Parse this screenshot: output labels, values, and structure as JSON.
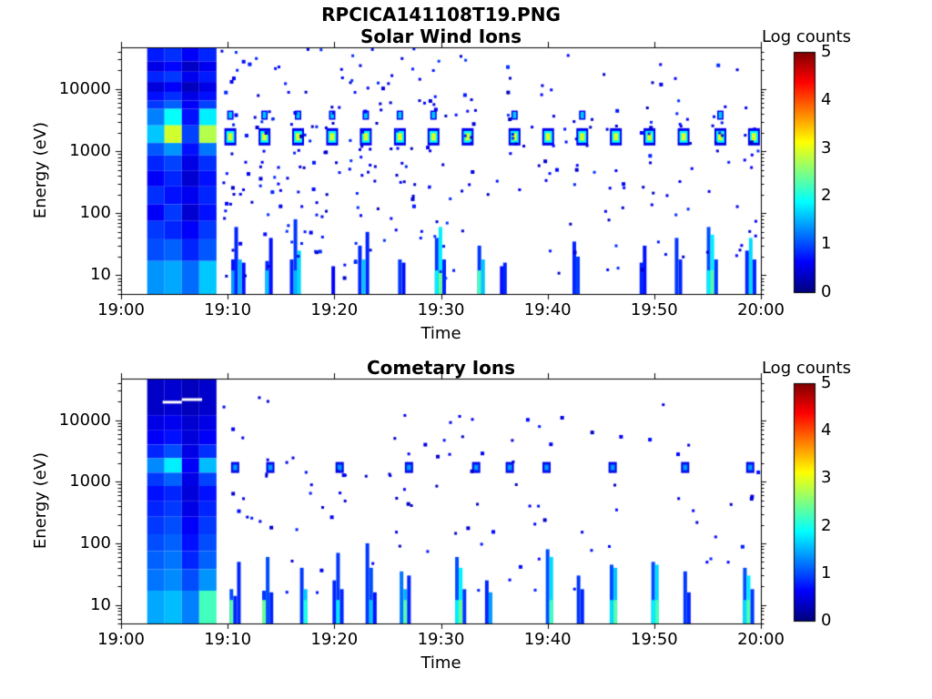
{
  "chart_data": {
    "type": "heatmap",
    "main_title": "RPCICA141108T19.PNG",
    "colormap": "jet",
    "x_axis": {
      "label": "Time",
      "tick_labels": [
        "19:00",
        "19:10",
        "19:20",
        "19:30",
        "19:40",
        "19:50",
        "20:00"
      ],
      "tick_minutes": [
        0,
        10,
        20,
        30,
        40,
        50,
        60
      ],
      "range_minutes": [
        0,
        60
      ]
    },
    "y_axis": {
      "label": "Energy (eV)",
      "scale": "log",
      "tick_labels": [
        "10",
        "100",
        "1000",
        "10000"
      ],
      "tick_values": [
        10,
        100,
        1000,
        10000
      ],
      "range_ev": [
        5,
        47000
      ]
    },
    "colorbar": {
      "label": "Log counts",
      "tick_labels": [
        "0",
        "1",
        "2",
        "3",
        "4",
        "5"
      ],
      "range": [
        0,
        5
      ]
    },
    "panels": [
      {
        "title": "Solar Wind Ions",
        "dense_block": {
          "t0": 2.45,
          "t1": 8.95,
          "n_columns": 4,
          "bands": [
            {
              "e": [
                47000,
                28000
              ],
              "v": [
                0.75,
                0.85,
                0.6,
                0.8
              ]
            },
            {
              "e": [
                28000,
                19000
              ],
              "v": [
                0.5,
                0.65,
                0.35,
                0.55
              ]
            },
            {
              "e": [
                19000,
                13000
              ],
              "v": [
                0.8,
                0.9,
                0.55,
                0.75
              ]
            },
            {
              "e": [
                13000,
                9000
              ],
              "v": [
                0.45,
                0.6,
                0.3,
                0.5
              ]
            },
            {
              "e": [
                9000,
                6500
              ],
              "v": [
                0.7,
                0.85,
                0.5,
                0.7
              ]
            },
            {
              "e": [
                6500,
                4800
              ],
              "v": [
                0.9,
                1.1,
                0.6,
                0.95
              ]
            },
            {
              "e": [
                4800,
                2600
              ],
              "v": [
                1.25,
                1.9,
                0.7,
                1.8
              ]
            },
            {
              "e": [
                2600,
                1350
              ],
              "v": [
                1.6,
                2.9,
                0.95,
                2.75
              ]
            },
            {
              "e": [
                1350,
                850
              ],
              "v": [
                1.05,
                1.35,
                0.7,
                1.2
              ]
            },
            {
              "e": [
                850,
                480
              ],
              "v": [
                0.8,
                0.95,
                0.5,
                0.85
              ]
            },
            {
              "e": [
                480,
                270
              ],
              "v": [
                0.6,
                0.8,
                0.4,
                0.7
              ]
            },
            {
              "e": [
                270,
                140
              ],
              "v": [
                0.85,
                0.7,
                0.55,
                0.8
              ]
            },
            {
              "e": [
                140,
                75
              ],
              "v": [
                0.6,
                0.9,
                0.4,
                0.7
              ]
            },
            {
              "e": [
                75,
                38
              ],
              "v": [
                0.9,
                0.8,
                0.6,
                0.9
              ]
            },
            {
              "e": [
                38,
                17
              ],
              "v": [
                1.0,
                1.1,
                0.8,
                1.05
              ]
            },
            {
              "e": [
                17,
                5
              ],
              "v": [
                1.35,
                1.45,
                1.15,
                1.6
              ]
            }
          ]
        },
        "beam": {
          "energy_ev": 1700,
          "times_min": [
            10.25,
            13.45,
            16.6,
            19.8,
            22.95,
            26.15,
            29.3,
            32.5,
            36.9,
            40.05,
            43.25,
            46.4,
            49.55,
            52.75,
            56.2,
            59.35
          ],
          "core_v": 2.95,
          "mid_v": 1.85,
          "edge_v": 0.55
        },
        "upper_spots": {
          "energy_ev": 3800,
          "times_min": [
            10.25,
            13.45,
            16.6,
            19.8,
            22.95,
            26.15,
            29.3,
            36.9,
            43.25,
            56.2
          ],
          "v": 1.6,
          "edge_v": 0.6
        },
        "streaks": [
          [
            10.5,
            18,
            0.7,
            1.4
          ],
          [
            10.8,
            60,
            0.8,
            0
          ],
          [
            11.15,
            18,
            1.5,
            0
          ],
          [
            11.5,
            16,
            0.7,
            0
          ],
          [
            13.7,
            17,
            0.8,
            1.6
          ],
          [
            14.05,
            40,
            0.7,
            0
          ],
          [
            16.0,
            18,
            0.8,
            0
          ],
          [
            16.35,
            80,
            0.9,
            1.5
          ],
          [
            16.7,
            25,
            1.7,
            0
          ],
          [
            19.9,
            14,
            0.6,
            0
          ],
          [
            22.4,
            30,
            0.8,
            0
          ],
          [
            22.75,
            18,
            1.6,
            0
          ],
          [
            23.1,
            50,
            0.8,
            0
          ],
          [
            26.15,
            18,
            0.9,
            0
          ],
          [
            26.5,
            16,
            0.7,
            0
          ],
          [
            29.6,
            40,
            0.9,
            1.8
          ],
          [
            29.95,
            60,
            1.8,
            2.4
          ],
          [
            30.3,
            18,
            0.8,
            0
          ],
          [
            33.6,
            30,
            0.9,
            2.2
          ],
          [
            33.95,
            18,
            1.6,
            0
          ],
          [
            35.7,
            14,
            0.7,
            0
          ],
          [
            36.0,
            16,
            0.8,
            0
          ],
          [
            42.5,
            35,
            0.8,
            0
          ],
          [
            42.85,
            20,
            0.9,
            0
          ],
          [
            48.8,
            16,
            0.8,
            0
          ],
          [
            49.1,
            30,
            0.7,
            0
          ],
          [
            52.1,
            40,
            0.9,
            0
          ],
          [
            52.45,
            18,
            0.8,
            0
          ],
          [
            55.1,
            60,
            1.0,
            1.8
          ],
          [
            55.45,
            45,
            1.8,
            2.3
          ],
          [
            55.8,
            18,
            0.9,
            0
          ],
          [
            58.7,
            25,
            0.8,
            0
          ],
          [
            59.05,
            40,
            1.7,
            0
          ],
          [
            59.4,
            18,
            0.8,
            0
          ]
        ],
        "speckles": {
          "seed": 7,
          "regions": [
            {
              "t": [
                9.3,
                31
              ],
              "log_e": [
                0.95,
                4.65
              ],
              "count": 135,
              "v": [
                0.3,
                0.9
              ]
            },
            {
              "t": [
                31,
                60
              ],
              "log_e": [
                0.95,
                4.65
              ],
              "count": 65,
              "v": [
                0.3,
                0.9
              ]
            }
          ],
          "beam_halo": {
            "per_beam": 7,
            "t_spread": 1.8,
            "log_e": [
              2.3,
              3.95
            ],
            "v": [
              0.3,
              0.85
            ]
          }
        }
      },
      {
        "title": "Cometary Ions",
        "dense_block": {
          "t0": 2.45,
          "t1": 8.95,
          "n_columns": 4,
          "bands": [
            {
              "e": [
                47000,
                12000
              ],
              "v": [
                0.35,
                0.4,
                0.3,
                0.38
              ]
            },
            {
              "e": [
                12000,
                6800
              ],
              "v": [
                0.5,
                0.55,
                0.4,
                0.5
              ]
            },
            {
              "e": [
                6800,
                4000
              ],
              "v": [
                0.6,
                0.7,
                0.45,
                0.6
              ]
            },
            {
              "e": [
                4000,
                2400
              ],
              "v": [
                0.8,
                1.0,
                0.5,
                0.85
              ]
            },
            {
              "e": [
                2400,
                1400
              ],
              "v": [
                1.3,
                1.8,
                0.6,
                1.55
              ]
            },
            {
              "e": [
                1400,
                850
              ],
              "v": [
                0.9,
                1.1,
                0.5,
                0.95
              ]
            },
            {
              "e": [
                850,
                480
              ],
              "v": [
                0.7,
                0.8,
                0.45,
                0.7
              ]
            },
            {
              "e": [
                480,
                270
              ],
              "v": [
                0.8,
                0.9,
                0.5,
                0.8
              ]
            },
            {
              "e": [
                270,
                140
              ],
              "v": [
                0.9,
                1.0,
                0.6,
                0.9
              ]
            },
            {
              "e": [
                140,
                75
              ],
              "v": [
                1.0,
                1.1,
                0.7,
                1.0
              ]
            },
            {
              "e": [
                75,
                38
              ],
              "v": [
                1.1,
                1.2,
                0.8,
                1.1
              ]
            },
            {
              "e": [
                38,
                17
              ],
              "v": [
                1.2,
                1.3,
                1.0,
                1.35
              ]
            },
            {
              "e": [
                17,
                5
              ],
              "v": [
                1.45,
                1.55,
                1.25,
                2.2
              ]
            }
          ]
        },
        "white_dashes": [
          {
            "t": [
              3.9,
              5.7
            ],
            "e": 19500
          },
          {
            "t": [
              5.7,
              7.6
            ],
            "e": 21500
          }
        ],
        "beam": {
          "energy_ev": 1700,
          "times_min": [
            10.7,
            14.0,
            20.5,
            27.0,
            33.3,
            36.45,
            39.9,
            46.1,
            52.9,
            59.0
          ],
          "core_v": 1.4,
          "mid_v": 0.95,
          "edge_v": 0.5
        },
        "streaks": [
          [
            10.35,
            18,
            1.0,
            2.3
          ],
          [
            10.7,
            14,
            0.8,
            0
          ],
          [
            11.05,
            50,
            0.8,
            0
          ],
          [
            13.4,
            17,
            0.9,
            2.4
          ],
          [
            13.75,
            60,
            1.0,
            0
          ],
          [
            14.1,
            16,
            0.8,
            0
          ],
          [
            16.95,
            40,
            0.9,
            0
          ],
          [
            17.3,
            18,
            1.6,
            2.0
          ],
          [
            20.0,
            25,
            0.8,
            0
          ],
          [
            20.35,
            70,
            0.9,
            1.8
          ],
          [
            20.7,
            18,
            0.8,
            0
          ],
          [
            23.1,
            100,
            0.9,
            0
          ],
          [
            23.45,
            40,
            1.0,
            1.6
          ],
          [
            23.8,
            16,
            0.7,
            0
          ],
          [
            26.3,
            35,
            1.2,
            0
          ],
          [
            26.65,
            18,
            1.5,
            2.3
          ],
          [
            27.0,
            30,
            0.8,
            0
          ],
          [
            31.5,
            60,
            1.0,
            1.8
          ],
          [
            31.85,
            40,
            1.8,
            2.4
          ],
          [
            32.2,
            18,
            0.9,
            0
          ],
          [
            34.3,
            25,
            0.8,
            0
          ],
          [
            34.65,
            16,
            1.4,
            0
          ],
          [
            40.0,
            80,
            1.0,
            0
          ],
          [
            40.35,
            60,
            1.7,
            2.2
          ],
          [
            42.9,
            30,
            0.9,
            0
          ],
          [
            43.25,
            18,
            0.8,
            0
          ],
          [
            46.0,
            45,
            1.0,
            1.7
          ],
          [
            46.35,
            40,
            1.6,
            2.3
          ],
          [
            49.9,
            50,
            1.0,
            1.8
          ],
          [
            50.25,
            45,
            1.7,
            2.2
          ],
          [
            52.9,
            35,
            0.9,
            0
          ],
          [
            53.25,
            16,
            0.8,
            0
          ],
          [
            58.5,
            40,
            1.0,
            1.7
          ],
          [
            58.85,
            30,
            1.8,
            2.3
          ],
          [
            59.2,
            18,
            0.9,
            0
          ]
        ],
        "speckles": {
          "seed": 19,
          "regions": [
            {
              "t": [
                9.3,
                35
              ],
              "log_e": [
                1.2,
                4.4
              ],
              "count": 48,
              "v": [
                0.3,
                0.8
              ]
            },
            {
              "t": [
                35,
                60
              ],
              "log_e": [
                1.2,
                4.3
              ],
              "count": 24,
              "v": [
                0.3,
                0.8
              ]
            }
          ],
          "beam_halo": {
            "per_beam": 3,
            "t_spread": 1.6,
            "log_e": [
              2.2,
              3.8
            ],
            "v": [
              0.3,
              0.7
            ]
          }
        }
      }
    ]
  }
}
